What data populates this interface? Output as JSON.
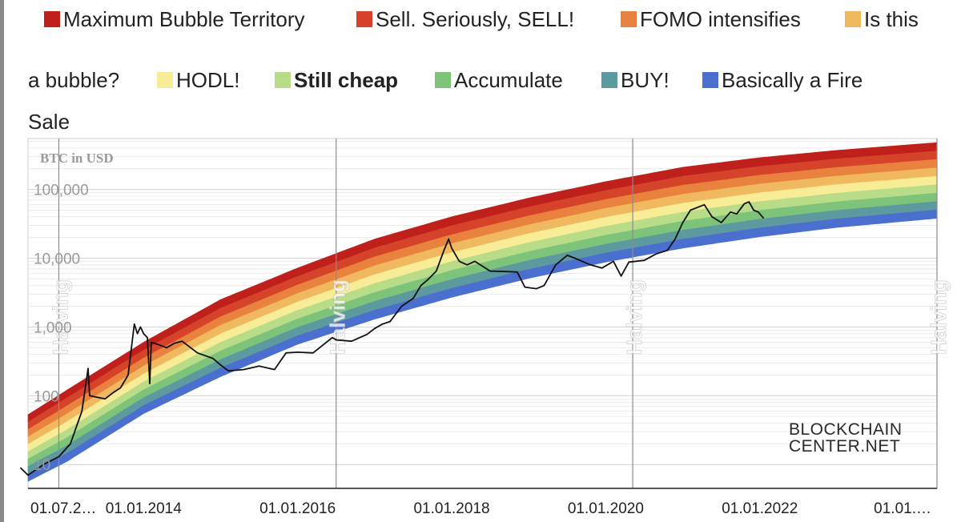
{
  "chart_data": {
    "type": "area",
    "title": "",
    "ylabel": "BTC in USD",
    "y_scale": "log",
    "ylim": [
      4.5,
      550000
    ],
    "y_ticks": [
      {
        "value": 100000,
        "label": "100,000"
      },
      {
        "value": 10000,
        "label": "10,000"
      },
      {
        "value": 1000,
        "label": "1,000"
      },
      {
        "value": 100,
        "label": "100"
      },
      {
        "value": 10,
        "label": "10"
      }
    ],
    "x_ticks": [
      "01.07.2…",
      "01.01.2014",
      "01.01.2016",
      "01.01.2018",
      "01.01.2020",
      "01.01.2022",
      "01.01.…"
    ],
    "x_tick_years": [
      2012.5,
      2014,
      2016,
      2018,
      2020,
      2022,
      2024
    ],
    "xlim": [
      2012.5,
      2024.3
    ],
    "grid": true,
    "legend_position": "top",
    "bands": [
      {
        "name": "Maximum Bubble Territory",
        "color": "#c0201b"
      },
      {
        "name": "Sell. Seriously, SELL!",
        "color": "#d5442a"
      },
      {
        "name": "FOMO intensifies",
        "color": "#e9823e"
      },
      {
        "name": "Is this a bubble?",
        "color": "#f1b95f"
      },
      {
        "name": "HODL!",
        "color": "#f8ec96"
      },
      {
        "name": "Still cheap",
        "color": "#b9dc88"
      },
      {
        "name": "Accumulate",
        "color": "#7dc47a"
      },
      {
        "name": "BUY!",
        "color": "#5c9aa0"
      },
      {
        "name": "Basically a Fire Sale",
        "color": "#4a6fcf"
      }
    ],
    "rainbow_edges": {
      "x": [
        2012.4,
        2013.0,
        2014.0,
        2015.0,
        2016.0,
        2017.0,
        2018.0,
        2019.0,
        2020.0,
        2021.0,
        2022.0,
        2023.0,
        2024.3
      ],
      "top": [
        45,
        120,
        600,
        2500,
        7200,
        19000,
        40000,
        75000,
        130000,
        210000,
        290000,
        370000,
        480000
      ],
      "bottom": [
        5,
        11,
        55,
        190,
        560,
        1300,
        2700,
        5100,
        8800,
        14000,
        20500,
        28000,
        38000
      ]
    },
    "vertical_lines": [
      {
        "x": 2012.9,
        "label": "Halving"
      },
      {
        "x": 2016.5,
        "label": "Halving"
      },
      {
        "x": 2020.35,
        "label": "Halving"
      },
      {
        "x": 2024.3,
        "label": "Halving"
      }
    ],
    "series": [
      {
        "values": [
          [
            2012.4,
            9
          ],
          [
            2012.5,
            7
          ],
          [
            2012.7,
            10
          ],
          [
            2012.9,
            13
          ],
          [
            2013.05,
            20
          ],
          [
            2013.2,
            60
          ],
          [
            2013.28,
            250
          ],
          [
            2013.3,
            100
          ],
          [
            2013.5,
            90
          ],
          [
            2013.6,
            110
          ],
          [
            2013.7,
            130
          ],
          [
            2013.8,
            200
          ],
          [
            2013.88,
            1100
          ],
          [
            2013.92,
            800
          ],
          [
            2013.96,
            1000
          ],
          [
            2014.0,
            800
          ],
          [
            2014.05,
            700
          ],
          [
            2014.08,
            150
          ],
          [
            2014.1,
            600
          ],
          [
            2014.2,
            550
          ],
          [
            2014.3,
            500
          ],
          [
            2014.4,
            580
          ],
          [
            2014.5,
            620
          ],
          [
            2014.7,
            420
          ],
          [
            2014.9,
            350
          ],
          [
            2015.0,
            280
          ],
          [
            2015.1,
            230
          ],
          [
            2015.3,
            240
          ],
          [
            2015.5,
            270
          ],
          [
            2015.7,
            240
          ],
          [
            2015.85,
            420
          ],
          [
            2016.0,
            430
          ],
          [
            2016.2,
            420
          ],
          [
            2016.45,
            700
          ],
          [
            2016.5,
            650
          ],
          [
            2016.7,
            620
          ],
          [
            2016.9,
            780
          ],
          [
            2017.0,
            950
          ],
          [
            2017.1,
            1100
          ],
          [
            2017.2,
            1200
          ],
          [
            2017.35,
            2000
          ],
          [
            2017.5,
            2600
          ],
          [
            2017.6,
            4000
          ],
          [
            2017.7,
            5000
          ],
          [
            2017.8,
            6500
          ],
          [
            2017.9,
            13000
          ],
          [
            2017.96,
            19000
          ],
          [
            2018.0,
            14000
          ],
          [
            2018.1,
            9000
          ],
          [
            2018.2,
            8000
          ],
          [
            2018.3,
            9000
          ],
          [
            2018.5,
            6500
          ],
          [
            2018.7,
            6400
          ],
          [
            2018.85,
            6300
          ],
          [
            2018.95,
            3800
          ],
          [
            2019.1,
            3600
          ],
          [
            2019.2,
            4000
          ],
          [
            2019.35,
            8000
          ],
          [
            2019.5,
            11000
          ],
          [
            2019.6,
            10000
          ],
          [
            2019.8,
            8000
          ],
          [
            2019.95,
            7200
          ],
          [
            2020.1,
            9000
          ],
          [
            2020.2,
            5500
          ],
          [
            2020.3,
            8800
          ],
          [
            2020.5,
            9300
          ],
          [
            2020.65,
            11500
          ],
          [
            2020.8,
            13000
          ],
          [
            2020.9,
            19000
          ],
          [
            2021.0,
            33000
          ],
          [
            2021.1,
            50000
          ],
          [
            2021.28,
            60000
          ],
          [
            2021.38,
            40000
          ],
          [
            2021.5,
            33000
          ],
          [
            2021.62,
            47000
          ],
          [
            2021.7,
            44000
          ],
          [
            2021.8,
            62000
          ],
          [
            2021.86,
            66000
          ],
          [
            2021.92,
            50000
          ],
          [
            2021.98,
            47000
          ],
          [
            2022.05,
            38000
          ]
        ]
      }
    ]
  },
  "watermark": {
    "line1": "BLOCKCHAIN",
    "line2": "CENTER.NET"
  },
  "legend_rows": {
    "row1": [
      {
        "label": "Maximum Bubble Territory",
        "color": "#c0201b"
      },
      {
        "label": "Sell. Seriously, SELL!",
        "color": "#d5442a"
      },
      {
        "label": "FOMO intensifies",
        "color": "#e9823e"
      },
      {
        "label": "Is this",
        "color": "#f1b95f"
      }
    ],
    "row2_lead": "a bubble?",
    "row2": [
      {
        "label": "HODL!",
        "color": "#f8ec96"
      },
      {
        "label": "Still cheap",
        "color": "#b9dc88",
        "bold": true
      },
      {
        "label": "Accumulate",
        "color": "#7dc47a"
      },
      {
        "label": "BUY!",
        "color": "#5c9aa0"
      },
      {
        "label": "Basically a Fire",
        "color": "#4a6fcf"
      }
    ],
    "row3_lead": "Sale"
  }
}
